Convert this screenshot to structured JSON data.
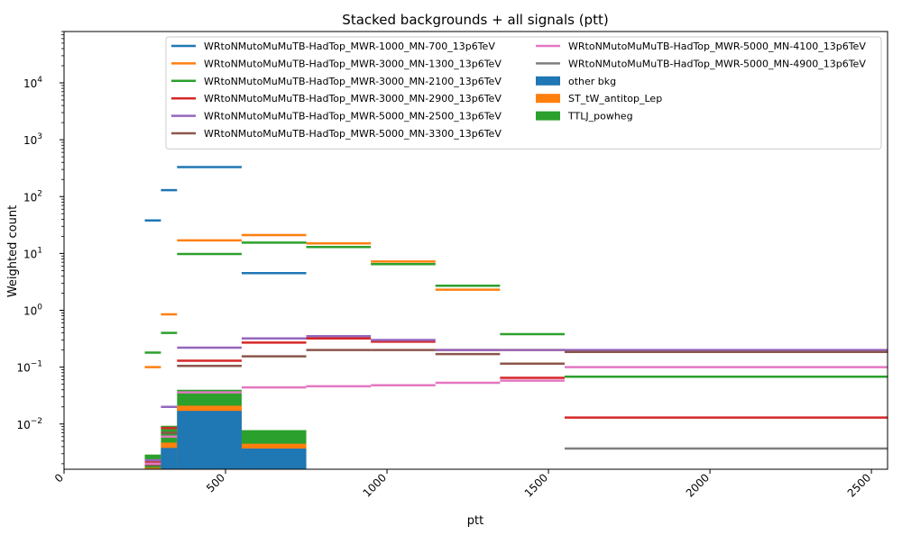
{
  "chart_data": {
    "type": "line",
    "title": "Stacked backgrounds + all signals (ptt)",
    "xlabel": "ptt",
    "ylabel": "Weighted count",
    "xlim": [
      0,
      2550
    ],
    "ylim": [
      0.0016,
      80000
    ],
    "yscale": "log",
    "grid": false,
    "legend_position": "top-right",
    "x_ticks": [
      0,
      500,
      1000,
      1500,
      2000,
      2500
    ],
    "x_tick_labels": [
      "0",
      "500",
      "1000",
      "1500",
      "2000",
      "2500"
    ],
    "y_ticks": [
      0.01,
      0.1,
      1,
      10,
      100,
      1000,
      10000
    ],
    "y_tick_base": "10",
    "y_tick_exponents": [
      "−2",
      "−1",
      "0",
      "1",
      "2",
      "3",
      "4"
    ],
    "bin_edges": [
      250,
      300,
      350,
      550,
      750,
      950,
      1150,
      1350,
      1550,
      2550
    ],
    "stacked_backgrounds": [
      {
        "name": "other bkg",
        "color": "#1f77b4",
        "values": [
          0.0016,
          0.0038,
          0.017,
          0.0037,
          null,
          null,
          null,
          null,
          null
        ]
      },
      {
        "name": "ST_tW_antitop_Lep",
        "color": "#ff7f0e",
        "values": [
          0.0017,
          0.0047,
          0.021,
          0.0045,
          null,
          null,
          null,
          null,
          null
        ]
      },
      {
        "name": "TTLJ_powheg",
        "color": "#2ca02c",
        "values": [
          0.0029,
          0.0093,
          0.04,
          0.0078,
          null,
          null,
          null,
          null,
          null
        ]
      }
    ],
    "series": [
      {
        "name": "WRtoNMutoMuMuTB-HadTop_MWR-1000_MN-700_13p6TeV",
        "color": "#1f77b4",
        "values": [
          38,
          130,
          330,
          4.5,
          null,
          null,
          null,
          null,
          null
        ]
      },
      {
        "name": "WRtoNMutoMuMuTB-HadTop_MWR-3000_MN-1300_13p6TeV",
        "color": "#ff7f0e",
        "values": [
          0.1,
          0.85,
          17,
          21,
          15,
          7.2,
          2.3,
          0.2,
          null
        ]
      },
      {
        "name": "WRtoNMutoMuMuTB-HadTop_MWR-3000_MN-2100_13p6TeV",
        "color": "#2ca02c",
        "values": [
          0.18,
          0.4,
          9.8,
          15.5,
          13,
          6.5,
          2.7,
          0.38,
          0.068
        ]
      },
      {
        "name": "WRtoNMutoMuMuTB-HadTop_MWR-3000_MN-2900_13p6TeV",
        "color": "#d62728",
        "values": [
          0.0022,
          0.0085,
          0.13,
          0.27,
          0.32,
          0.28,
          0.2,
          0.065,
          0.013
        ]
      },
      {
        "name": "WRtoNMutoMuMuTB-HadTop_MWR-5000_MN-2500_13p6TeV",
        "color": "#9467bd",
        "values": [
          0.0023,
          0.02,
          0.22,
          0.32,
          0.35,
          0.3,
          0.2,
          0.2,
          0.2
        ]
      },
      {
        "name": "WRtoNMutoMuMuTB-HadTop_MWR-5000_MN-3300_13p6TeV",
        "color": "#8c564b",
        "values": [
          0.0019,
          0.007,
          0.105,
          0.155,
          0.2,
          0.2,
          0.17,
          0.115,
          0.185
        ]
      },
      {
        "name": "WRtoNMutoMuMuTB-HadTop_MWR-5000_MN-4100_13p6TeV",
        "color": "#e377c2",
        "values": [
          0.002,
          0.006,
          0.036,
          0.044,
          0.046,
          0.048,
          0.053,
          0.058,
          0.1
        ]
      },
      {
        "name": "WRtoNMutoMuMuTB-HadTop_MWR-5000_MN-4900_13p6TeV",
        "color": "#7f7f7f",
        "values": [
          null,
          null,
          null,
          null,
          null,
          null,
          null,
          null,
          0.0037
        ]
      }
    ]
  }
}
